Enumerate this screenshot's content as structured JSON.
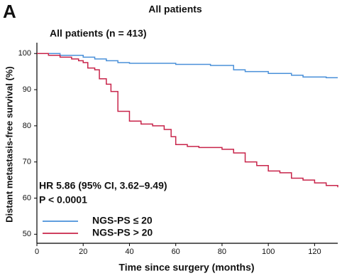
{
  "chart_data": {
    "type": "line",
    "step": true,
    "panel_label": "A",
    "title": "All patients",
    "subtitle": "All patients (n = 413)",
    "x_label": "Time since surgery (months)",
    "y_label": "Distant metastasis-free survival (%)",
    "annotations": [
      "HR 5.86 (95% CI, 3.62–9.49)",
      "P < 0.0001"
    ],
    "xlim": [
      0,
      130
    ],
    "xticks": [
      0,
      20,
      40,
      60,
      80,
      100,
      120
    ],
    "ylim": [
      47.5,
      103
    ],
    "yticks": [
      50,
      60,
      70,
      80,
      90,
      100
    ],
    "grid": false,
    "legend": "lower left",
    "series": [
      {
        "name": "NGS-PS ≤ 20",
        "color": "#4a90d9",
        "x": [
          0,
          10,
          20,
          25,
          30,
          35,
          40,
          60,
          75,
          85,
          90,
          100,
          110,
          115,
          125,
          130
        ],
        "values": [
          100,
          99.5,
          99,
          98.5,
          98,
          97.5,
          97.3,
          97,
          96.7,
          95.5,
          95,
          94.5,
          94,
          93.5,
          93.3,
          93.3
        ]
      },
      {
        "name": "NGS-PS > 20",
        "color": "#c8244a",
        "x": [
          0,
          5,
          10,
          15,
          18,
          20,
          22,
          25,
          27,
          30,
          32,
          35,
          40,
          45,
          50,
          55,
          58,
          60,
          65,
          70,
          80,
          85,
          90,
          95,
          100,
          105,
          110,
          115,
          120,
          125,
          130
        ],
        "values": [
          100,
          99.5,
          99,
          98.5,
          98,
          97.5,
          96,
          95.5,
          93,
          91.5,
          89.5,
          84,
          81.3,
          80.5,
          80,
          79,
          77,
          74.8,
          74.3,
          74,
          73.5,
          72.5,
          70,
          69,
          67.5,
          67,
          65.5,
          65,
          64.2,
          63.5,
          63
        ]
      }
    ]
  }
}
